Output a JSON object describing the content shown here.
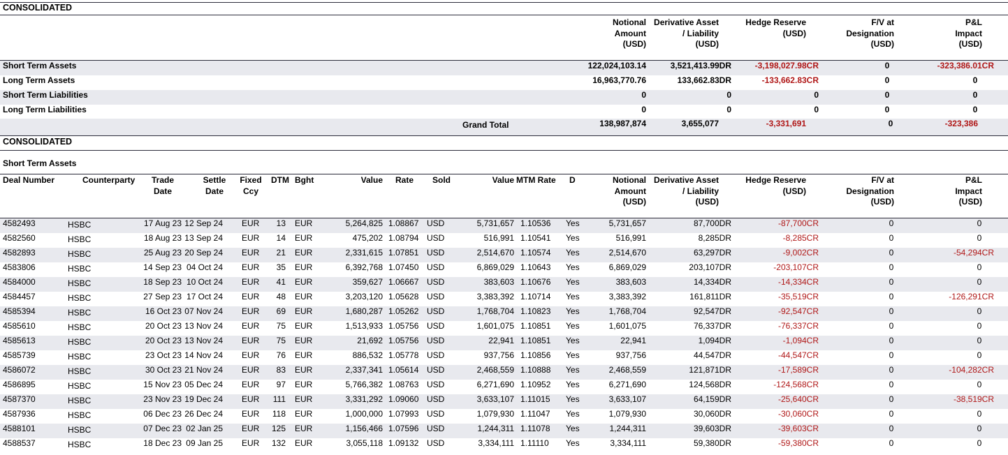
{
  "summary": {
    "section_title": "CONSOLIDATED",
    "headers": {
      "notional": "Notional\nAmount\n(USD)",
      "derivative": "Derivative Asset\n/ Liability\n(USD)",
      "hedge": "Hedge Reserve\n(USD)",
      "fv": "F/V at\nDesignation\n(USD)",
      "pl": "P&L\nImpact\n(USD)"
    },
    "rows": [
      {
        "label": "Short Term Assets",
        "notional": "122,024,103.14",
        "derivative": "3,521,413.99DR",
        "hedge": "-3,198,027.98CR",
        "fv": "0",
        "pl": "-323,386.01CR"
      },
      {
        "label": "Long Term Assets",
        "notional": "16,963,770.76",
        "derivative": "133,662.83DR",
        "hedge": "-133,662.83CR",
        "fv": "0",
        "pl": "0"
      },
      {
        "label": "Short Term Liabilities",
        "notional": "0",
        "derivative": "0",
        "hedge": "0",
        "fv": "0",
        "pl": "0"
      },
      {
        "label": "Long Term Liabilities",
        "notional": "0",
        "derivative": "0",
        "hedge": "0",
        "fv": "0",
        "pl": "0"
      }
    ],
    "grand_total": {
      "label": "Grand Total",
      "notional": "138,987,874",
      "derivative": "3,655,077",
      "hedge": "-3,331,691",
      "fv": "0",
      "pl": "-323,386"
    }
  },
  "detail": {
    "section_title": "CONSOLIDATED",
    "sub_title": "Short Term Assets",
    "headers": {
      "deal": "Deal Number",
      "counterparty": "Counterparty",
      "trade_date": "Trade\nDate",
      "settle_date": "Settle\nDate",
      "fixed_ccy": "Fixed\nCcy",
      "dtm": "DTM",
      "bght": "Bght",
      "value": "Value",
      "rate": "Rate",
      "sold": "Sold",
      "value2": "Value",
      "mtm_rate": "MTM Rate",
      "d": "D",
      "notional": "Notional\nAmount\n(USD)",
      "derivative": "Derivative Asset\n/ Liability\n(USD)",
      "hedge": "Hedge Reserve\n(USD)",
      "fv": "F/V at\nDesignation\n(USD)",
      "pl": "P&L\nImpact\n(USD)"
    },
    "rows": [
      {
        "deal": "4582493",
        "cp": "HSBC",
        "trade": "17 Aug 23",
        "settle": "12 Sep 24",
        "ccy": "EUR",
        "dtm": "13",
        "bght": "EUR",
        "value": "5,264,825",
        "rate": "1.08867",
        "sold": "USD",
        "value2": "5,731,657",
        "mtm": "1.10536",
        "d": "Yes",
        "notional": "5,731,657",
        "derivative": "87,700DR",
        "hedge": "-87,700CR",
        "fv": "0",
        "pl": "0"
      },
      {
        "deal": "4582560",
        "cp": "HSBC",
        "trade": "18 Aug 23",
        "settle": "13 Sep 24",
        "ccy": "EUR",
        "dtm": "14",
        "bght": "EUR",
        "value": "475,202",
        "rate": "1.08794",
        "sold": "USD",
        "value2": "516,991",
        "mtm": "1.10541",
        "d": "Yes",
        "notional": "516,991",
        "derivative": "8,285DR",
        "hedge": "-8,285CR",
        "fv": "0",
        "pl": "0"
      },
      {
        "deal": "4582893",
        "cp": "HSBC",
        "trade": "25 Aug 23",
        "settle": "20 Sep 24",
        "ccy": "EUR",
        "dtm": "21",
        "bght": "EUR",
        "value": "2,331,615",
        "rate": "1.07851",
        "sold": "USD",
        "value2": "2,514,670",
        "mtm": "1.10574",
        "d": "Yes",
        "notional": "2,514,670",
        "derivative": "63,297DR",
        "hedge": "-9,002CR",
        "fv": "0",
        "pl": "-54,294CR"
      },
      {
        "deal": "4583806",
        "cp": "HSBC",
        "trade": "14 Sep 23",
        "settle": "04 Oct 24",
        "ccy": "EUR",
        "dtm": "35",
        "bght": "EUR",
        "value": "6,392,768",
        "rate": "1.07450",
        "sold": "USD",
        "value2": "6,869,029",
        "mtm": "1.10643",
        "d": "Yes",
        "notional": "6,869,029",
        "derivative": "203,107DR",
        "hedge": "-203,107CR",
        "fv": "0",
        "pl": "0"
      },
      {
        "deal": "4584000",
        "cp": "HSBC",
        "trade": "18 Sep 23",
        "settle": "10 Oct 24",
        "ccy": "EUR",
        "dtm": "41",
        "bght": "EUR",
        "value": "359,627",
        "rate": "1.06667",
        "sold": "USD",
        "value2": "383,603",
        "mtm": "1.10676",
        "d": "Yes",
        "notional": "383,603",
        "derivative": "14,334DR",
        "hedge": "-14,334CR",
        "fv": "0",
        "pl": "0"
      },
      {
        "deal": "4584457",
        "cp": "HSBC",
        "trade": "27 Sep 23",
        "settle": "17 Oct 24",
        "ccy": "EUR",
        "dtm": "48",
        "bght": "EUR",
        "value": "3,203,120",
        "rate": "1.05628",
        "sold": "USD",
        "value2": "3,383,392",
        "mtm": "1.10714",
        "d": "Yes",
        "notional": "3,383,392",
        "derivative": "161,811DR",
        "hedge": "-35,519CR",
        "fv": "0",
        "pl": "-126,291CR"
      },
      {
        "deal": "4585394",
        "cp": "HSBC",
        "trade": "16 Oct 23",
        "settle": "07 Nov 24",
        "ccy": "EUR",
        "dtm": "69",
        "bght": "EUR",
        "value": "1,680,287",
        "rate": "1.05262",
        "sold": "USD",
        "value2": "1,768,704",
        "mtm": "1.10823",
        "d": "Yes",
        "notional": "1,768,704",
        "derivative": "92,547DR",
        "hedge": "-92,547CR",
        "fv": "0",
        "pl": "0"
      },
      {
        "deal": "4585610",
        "cp": "HSBC",
        "trade": "20 Oct 23",
        "settle": "13 Nov 24",
        "ccy": "EUR",
        "dtm": "75",
        "bght": "EUR",
        "value": "1,513,933",
        "rate": "1.05756",
        "sold": "USD",
        "value2": "1,601,075",
        "mtm": "1.10851",
        "d": "Yes",
        "notional": "1,601,075",
        "derivative": "76,337DR",
        "hedge": "-76,337CR",
        "fv": "0",
        "pl": "0"
      },
      {
        "deal": "4585613",
        "cp": "HSBC",
        "trade": "20 Oct 23",
        "settle": "13 Nov 24",
        "ccy": "EUR",
        "dtm": "75",
        "bght": "EUR",
        "value": "21,692",
        "rate": "1.05756",
        "sold": "USD",
        "value2": "22,941",
        "mtm": "1.10851",
        "d": "Yes",
        "notional": "22,941",
        "derivative": "1,094DR",
        "hedge": "-1,094CR",
        "fv": "0",
        "pl": "0"
      },
      {
        "deal": "4585739",
        "cp": "HSBC",
        "trade": "23 Oct 23",
        "settle": "14 Nov 24",
        "ccy": "EUR",
        "dtm": "76",
        "bght": "EUR",
        "value": "886,532",
        "rate": "1.05778",
        "sold": "USD",
        "value2": "937,756",
        "mtm": "1.10856",
        "d": "Yes",
        "notional": "937,756",
        "derivative": "44,547DR",
        "hedge": "-44,547CR",
        "fv": "0",
        "pl": "0"
      },
      {
        "deal": "4586072",
        "cp": "HSBC",
        "trade": "30 Oct 23",
        "settle": "21 Nov 24",
        "ccy": "EUR",
        "dtm": "83",
        "bght": "EUR",
        "value": "2,337,341",
        "rate": "1.05614",
        "sold": "USD",
        "value2": "2,468,559",
        "mtm": "1.10888",
        "d": "Yes",
        "notional": "2,468,559",
        "derivative": "121,871DR",
        "hedge": "-17,589CR",
        "fv": "0",
        "pl": "-104,282CR"
      },
      {
        "deal": "4586895",
        "cp": "HSBC",
        "trade": "15 Nov 23",
        "settle": "05 Dec 24",
        "ccy": "EUR",
        "dtm": "97",
        "bght": "EUR",
        "value": "5,766,382",
        "rate": "1.08763",
        "sold": "USD",
        "value2": "6,271,690",
        "mtm": "1.10952",
        "d": "Yes",
        "notional": "6,271,690",
        "derivative": "124,568DR",
        "hedge": "-124,568CR",
        "fv": "0",
        "pl": "0"
      },
      {
        "deal": "4587370",
        "cp": "HSBC",
        "trade": "23 Nov 23",
        "settle": "19 Dec 24",
        "ccy": "EUR",
        "dtm": "111",
        "bght": "EUR",
        "value": "3,331,292",
        "rate": "1.09060",
        "sold": "USD",
        "value2": "3,633,107",
        "mtm": "1.11015",
        "d": "Yes",
        "notional": "3,633,107",
        "derivative": "64,159DR",
        "hedge": "-25,640CR",
        "fv": "0",
        "pl": "-38,519CR"
      },
      {
        "deal": "4587936",
        "cp": "HSBC",
        "trade": "06 Dec 23",
        "settle": "26 Dec 24",
        "ccy": "EUR",
        "dtm": "118",
        "bght": "EUR",
        "value": "1,000,000",
        "rate": "1.07993",
        "sold": "USD",
        "value2": "1,079,930",
        "mtm": "1.11047",
        "d": "Yes",
        "notional": "1,079,930",
        "derivative": "30,060DR",
        "hedge": "-30,060CR",
        "fv": "0",
        "pl": "0"
      },
      {
        "deal": "4588101",
        "cp": "HSBC",
        "trade": "07 Dec 23",
        "settle": "02 Jan 25",
        "ccy": "EUR",
        "dtm": "125",
        "bght": "EUR",
        "value": "1,156,466",
        "rate": "1.07596",
        "sold": "USD",
        "value2": "1,244,311",
        "mtm": "1.11078",
        "d": "Yes",
        "notional": "1,244,311",
        "derivative": "39,603DR",
        "hedge": "-39,603CR",
        "fv": "0",
        "pl": "0"
      },
      {
        "deal": "4588537",
        "cp": "HSBC",
        "trade": "18 Dec 23",
        "settle": "09 Jan 25",
        "ccy": "EUR",
        "dtm": "132",
        "bght": "EUR",
        "value": "3,055,118",
        "rate": "1.09132",
        "sold": "USD",
        "value2": "3,334,111",
        "mtm": "1.11110",
        "d": "Yes",
        "notional": "3,334,111",
        "derivative": "59,380DR",
        "hedge": "-59,380CR",
        "fv": "0",
        "pl": "0"
      }
    ]
  },
  "colors": {
    "band": "#e8e9ee",
    "negative": "#b01818",
    "rule": "#2b2b3a"
  }
}
